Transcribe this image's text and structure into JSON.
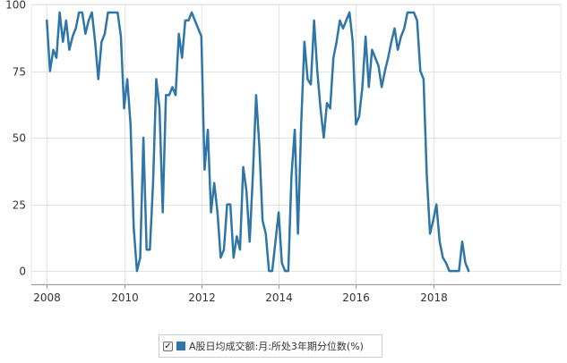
{
  "chart_data": {
    "type": "line",
    "title": "",
    "xlabel": "",
    "ylabel": "",
    "xlim": [
      2007.6,
      2021.3
    ],
    "ylim": [
      -5,
      100
    ],
    "x_ticks": [
      2008,
      2010,
      2012,
      2014,
      2016,
      2018
    ],
    "y_ticks": [
      0,
      25,
      50,
      75,
      100
    ],
    "grid": true,
    "legend_position": "bottom",
    "series": [
      {
        "name": "A股日均成交额:月:所处3年期分位数(%)",
        "color": "#2e75a8",
        "x": [
          2008.0,
          2008.083,
          2008.167,
          2008.25,
          2008.333,
          2008.417,
          2008.5,
          2008.583,
          2008.667,
          2008.75,
          2008.833,
          2008.917,
          2009.0,
          2009.083,
          2009.167,
          2009.25,
          2009.333,
          2009.417,
          2009.5,
          2009.583,
          2009.667,
          2009.75,
          2009.833,
          2009.917,
          2010.0,
          2010.083,
          2010.167,
          2010.25,
          2010.333,
          2010.417,
          2010.5,
          2010.583,
          2010.667,
          2010.75,
          2010.833,
          2010.917,
          2011.0,
          2011.083,
          2011.167,
          2011.25,
          2011.333,
          2011.417,
          2011.5,
          2011.583,
          2011.667,
          2011.75,
          2011.833,
          2011.917,
          2012.0,
          2012.083,
          2012.167,
          2012.25,
          2012.333,
          2012.417,
          2012.5,
          2012.583,
          2012.667,
          2012.75,
          2012.833,
          2012.917,
          2013.0,
          2013.083,
          2013.167,
          2013.25,
          2013.333,
          2013.417,
          2013.5,
          2013.583,
          2013.667,
          2013.75,
          2013.833,
          2013.917,
          2014.0,
          2014.083,
          2014.167,
          2014.25,
          2014.333,
          2014.417,
          2014.5,
          2014.583,
          2014.667,
          2014.75,
          2014.833,
          2014.917,
          2015.0,
          2015.083,
          2015.167,
          2015.25,
          2015.333,
          2015.417,
          2015.5,
          2015.583,
          2015.667,
          2015.75,
          2015.833,
          2015.917,
          2016.0,
          2016.083,
          2016.167,
          2016.25,
          2016.333,
          2016.417,
          2016.5,
          2016.583,
          2016.667,
          2016.75,
          2016.833,
          2016.917,
          2017.0,
          2017.083,
          2017.167,
          2017.25,
          2017.333,
          2017.417,
          2017.5,
          2017.583,
          2017.667,
          2017.75,
          2017.833,
          2017.917,
          2018.0,
          2018.083,
          2018.167,
          2018.25,
          2018.333,
          2018.417,
          2018.5,
          2018.583,
          2018.667,
          2018.75,
          2018.833,
          2018.917
        ],
        "values": [
          94,
          75,
          83,
          80,
          97,
          86,
          94,
          83,
          88,
          91,
          97,
          97,
          89,
          94,
          97,
          86,
          72,
          86,
          89,
          97,
          97,
          97,
          97,
          88,
          61,
          72,
          55,
          16,
          0,
          5,
          50,
          8,
          8,
          33,
          72,
          61,
          22,
          66,
          66,
          69,
          66,
          89,
          80,
          94,
          94,
          97,
          94,
          91,
          88,
          38,
          53,
          22,
          33,
          22,
          5,
          8,
          25,
          25,
          5,
          13,
          8,
          39,
          30,
          11,
          36,
          66,
          47,
          19,
          14,
          0,
          0,
          11,
          22,
          3,
          0,
          0,
          36,
          53,
          14,
          55,
          86,
          72,
          70,
          94,
          75,
          61,
          50,
          63,
          61,
          80,
          86,
          94,
          91,
          94,
          97,
          86,
          55,
          58,
          69,
          88,
          69,
          83,
          80,
          77,
          69,
          75,
          80,
          86,
          91,
          83,
          88,
          91,
          97,
          97,
          97,
          94,
          75,
          72,
          36,
          14,
          19,
          25,
          11,
          5,
          3,
          0,
          0,
          0,
          0,
          11,
          3,
          0
        ]
      }
    ]
  },
  "legend": {
    "checked": true,
    "check_glyph": "✓",
    "label": "A股日均成交额:月:所处3年期分位数(%)",
    "swatch_color": "#2e75a8"
  }
}
